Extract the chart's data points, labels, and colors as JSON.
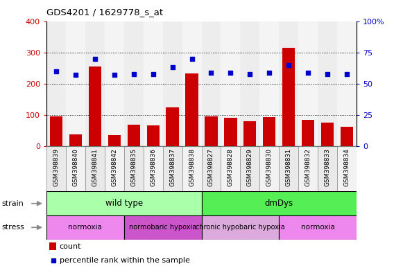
{
  "title": "GDS4201 / 1629778_s_at",
  "samples": [
    "GSM398839",
    "GSM398840",
    "GSM398841",
    "GSM398842",
    "GSM398835",
    "GSM398836",
    "GSM398837",
    "GSM398838",
    "GSM398827",
    "GSM398828",
    "GSM398829",
    "GSM398830",
    "GSM398831",
    "GSM398832",
    "GSM398833",
    "GSM398834"
  ],
  "counts": [
    95,
    38,
    255,
    37,
    70,
    68,
    125,
    233,
    95,
    92,
    80,
    93,
    315,
    85,
    75,
    62
  ],
  "percentile_ranks": [
    60,
    57,
    70,
    57,
    58,
    58,
    63,
    70,
    59,
    59,
    58,
    59,
    65,
    59,
    58,
    58
  ],
  "bar_color": "#cc0000",
  "dot_color": "#0000cc",
  "ylim_left": [
    0,
    400
  ],
  "ylim_right": [
    0,
    100
  ],
  "yticks_left": [
    0,
    100,
    200,
    300,
    400
  ],
  "yticks_right": [
    0,
    25,
    50,
    75,
    100
  ],
  "strain_groups": [
    {
      "label": "wild type",
      "start": 0,
      "end": 8,
      "color": "#aaffaa"
    },
    {
      "label": "dmDys",
      "start": 8,
      "end": 16,
      "color": "#55ee55"
    }
  ],
  "stress_groups": [
    {
      "label": "normoxia",
      "start": 0,
      "end": 4,
      "color": "#ee88ee"
    },
    {
      "label": "normobaric hypoxia",
      "start": 4,
      "end": 8,
      "color": "#cc55cc"
    },
    {
      "label": "chronic hypobaric hypoxia",
      "start": 8,
      "end": 12,
      "color": "#ddaadd"
    },
    {
      "label": "normoxia",
      "start": 12,
      "end": 16,
      "color": "#ee88ee"
    }
  ],
  "bar_color_legend": "#cc0000",
  "dot_color_legend": "#0000cc",
  "tick_color_left": "#cc0000",
  "tick_color_right": "#0000cc"
}
